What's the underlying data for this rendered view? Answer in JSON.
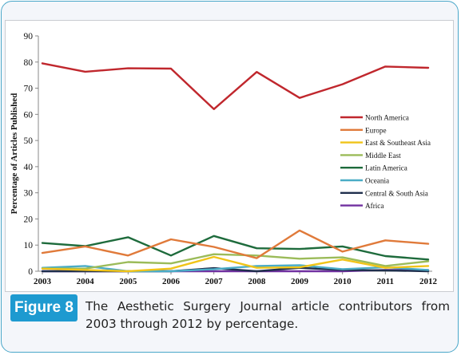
{
  "figure": {
    "label": "Figure 8",
    "caption": "The Aesthetic Surgery Journal article contributors from 2003 through 2012 by percentage."
  },
  "chart_data": {
    "type": "line",
    "title": "",
    "xlabel": "",
    "ylabel": "Percentage of Articles Published",
    "ylim": [
      0,
      90
    ],
    "yticks": [
      "0",
      "10",
      "20",
      "30",
      "40",
      "50",
      "60",
      "70",
      "80",
      "90"
    ],
    "x": [
      "2003",
      "2004",
      "2005",
      "2006",
      "2007",
      "2008",
      "2009",
      "2010",
      "2011",
      "2012"
    ],
    "grid": false,
    "legend_position": "right",
    "series": [
      {
        "name": "North America",
        "color": "#c0272d",
        "values": [
          79.5,
          76.3,
          77.6,
          77.5,
          62.0,
          76.2,
          66.3,
          71.5,
          78.3,
          77.8
        ]
      },
      {
        "name": "Europe",
        "color": "#e07a3a",
        "values": [
          7.0,
          9.5,
          6.0,
          12.2,
          9.3,
          5.0,
          15.6,
          7.5,
          11.8,
          10.5
        ]
      },
      {
        "name": "East & Southeast Asia",
        "color": "#f0c419",
        "values": [
          1.0,
          0.5,
          0.0,
          1.0,
          5.5,
          1.3,
          1.5,
          4.5,
          1.3,
          2.0
        ]
      },
      {
        "name": "Middle East",
        "color": "#9bbb59",
        "values": [
          1.0,
          1.0,
          3.5,
          3.0,
          6.5,
          6.0,
          4.8,
          5.3,
          2.0,
          3.8
        ]
      },
      {
        "name": "Latin America",
        "color": "#1e6b3c",
        "values": [
          10.8,
          9.6,
          13.0,
          6.0,
          13.5,
          8.8,
          8.5,
          9.5,
          5.8,
          4.5
        ]
      },
      {
        "name": "Oceania",
        "color": "#4bacc6",
        "values": [
          1.3,
          2.0,
          0.0,
          0.0,
          0.8,
          2.0,
          2.3,
          0.8,
          1.5,
          0.5
        ]
      },
      {
        "name": "Central & South Asia",
        "color": "#1f2f4d",
        "values": [
          0.0,
          0.0,
          0.0,
          0.0,
          1.2,
          0.0,
          1.3,
          0.5,
          0.3,
          0.0
        ]
      },
      {
        "name": "Africa",
        "color": "#7030a0",
        "values": [
          0.0,
          0.0,
          0.0,
          0.0,
          0.0,
          0.0,
          0.0,
          0.0,
          0.5,
          0.5
        ]
      }
    ]
  }
}
